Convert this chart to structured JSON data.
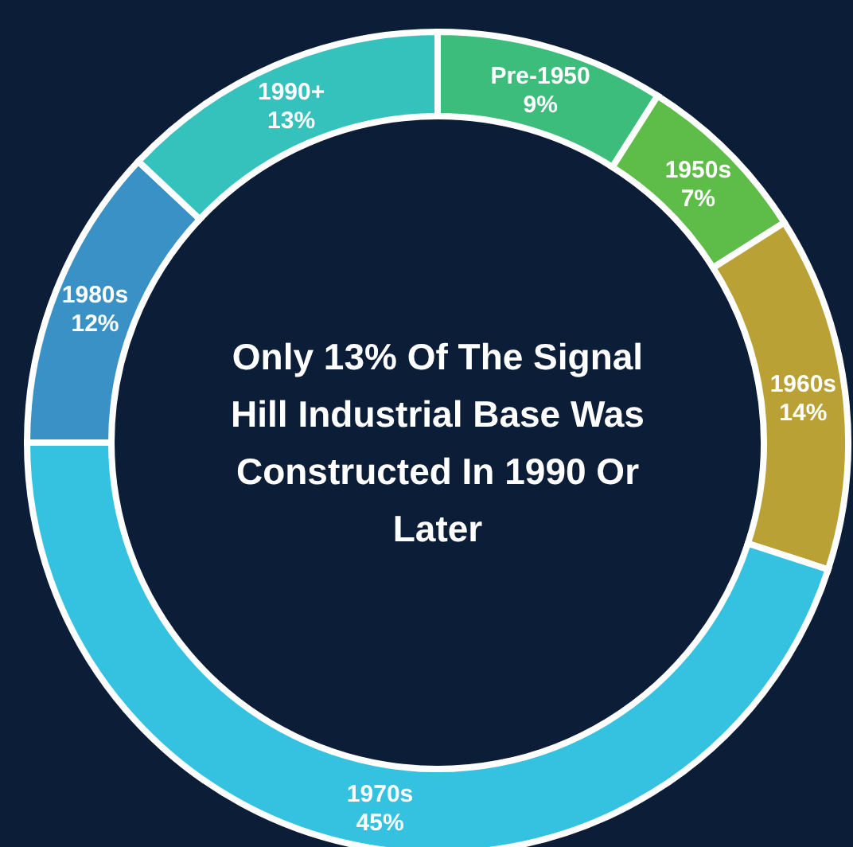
{
  "chart_data": {
    "type": "donut",
    "title": "Only 13% Of The Signal Hill Industrial Base Was Constructed In 1990 Or Later",
    "categories": [
      "Pre-1950",
      "1950s",
      "1960s",
      "1970s",
      "1980s",
      "1990+"
    ],
    "values": [
      9,
      7,
      14,
      45,
      12,
      13
    ],
    "value_labels": [
      "9%",
      "7%",
      "14%",
      "45%",
      "12%",
      "13%"
    ],
    "colors": [
      "#3dbd7c",
      "#5dbd48",
      "#b9a135",
      "#35c2e0",
      "#3a91c6",
      "#35c2bd"
    ]
  }
}
